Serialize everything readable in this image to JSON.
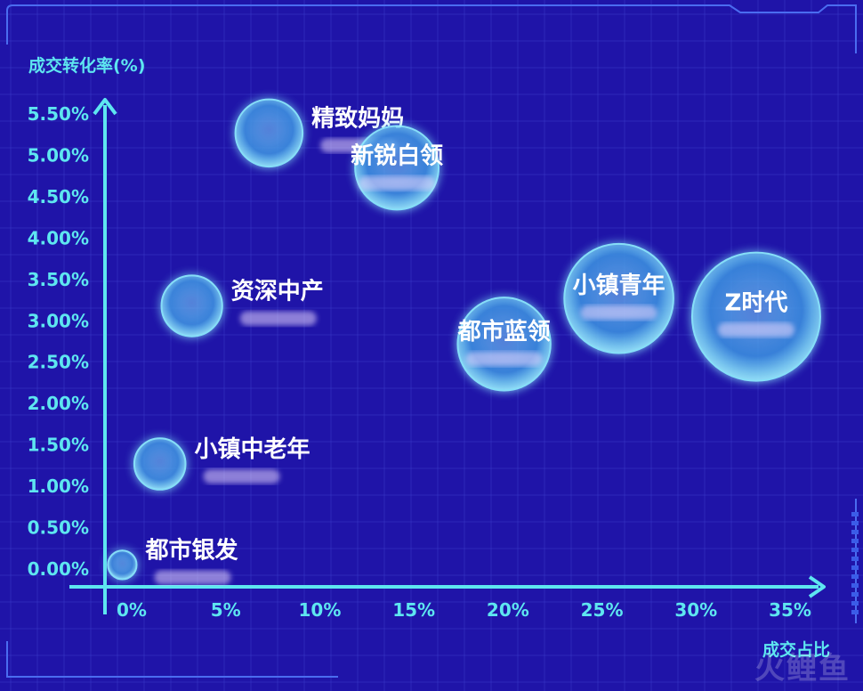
{
  "chart_data": {
    "type": "scatter",
    "title": "",
    "ylabel": "成交转化率(%)",
    "xlabel": "成交占比",
    "x_ticks": [
      "0%",
      "5%",
      "10%",
      "15%",
      "20%",
      "25%",
      "30%",
      "35%"
    ],
    "y_ticks": [
      "0.00%",
      "0.50%",
      "1.00%",
      "1.50%",
      "2.00%",
      "2.50%",
      "3.00%",
      "3.50%",
      "4.00%",
      "4.50%",
      "5.00%",
      "5.50%"
    ],
    "xlim": [
      0,
      35
    ],
    "ylim": [
      0,
      5.5
    ],
    "points": [
      {
        "label": "精致妈妈",
        "x": 7.3,
        "y": 5.27,
        "size": 5.5
      },
      {
        "label": "新锐白领",
        "x": 14.1,
        "y": 4.85,
        "size": 8.5
      },
      {
        "label": "资深中产",
        "x": 3.2,
        "y": 3.18,
        "size": 4.5
      },
      {
        "label": "都市蓝领",
        "x": 19.8,
        "y": 2.72,
        "size": 10.5
      },
      {
        "label": "小镇青年",
        "x": 25.9,
        "y": 3.27,
        "size": 14.5
      },
      {
        "label": "Z时代",
        "x": 33.2,
        "y": 3.05,
        "size": 20
      },
      {
        "label": "小镇中老年",
        "x": 1.5,
        "y": 1.27,
        "size": 3.2
      },
      {
        "label": "都市银发",
        "x": -0.5,
        "y": 0.05,
        "size": 1
      }
    ],
    "grid": true
  },
  "colors": {
    "background": "#1f14a8",
    "grid": "#3a3ac8",
    "axis": "#5ee6f0",
    "tick_text": "#5ee6f0",
    "label_text": "#ffffff",
    "bubble_fill": "#3a8fe0",
    "bubble_stroke": "#8ff0ff"
  },
  "watermark": "火鲤鱼"
}
